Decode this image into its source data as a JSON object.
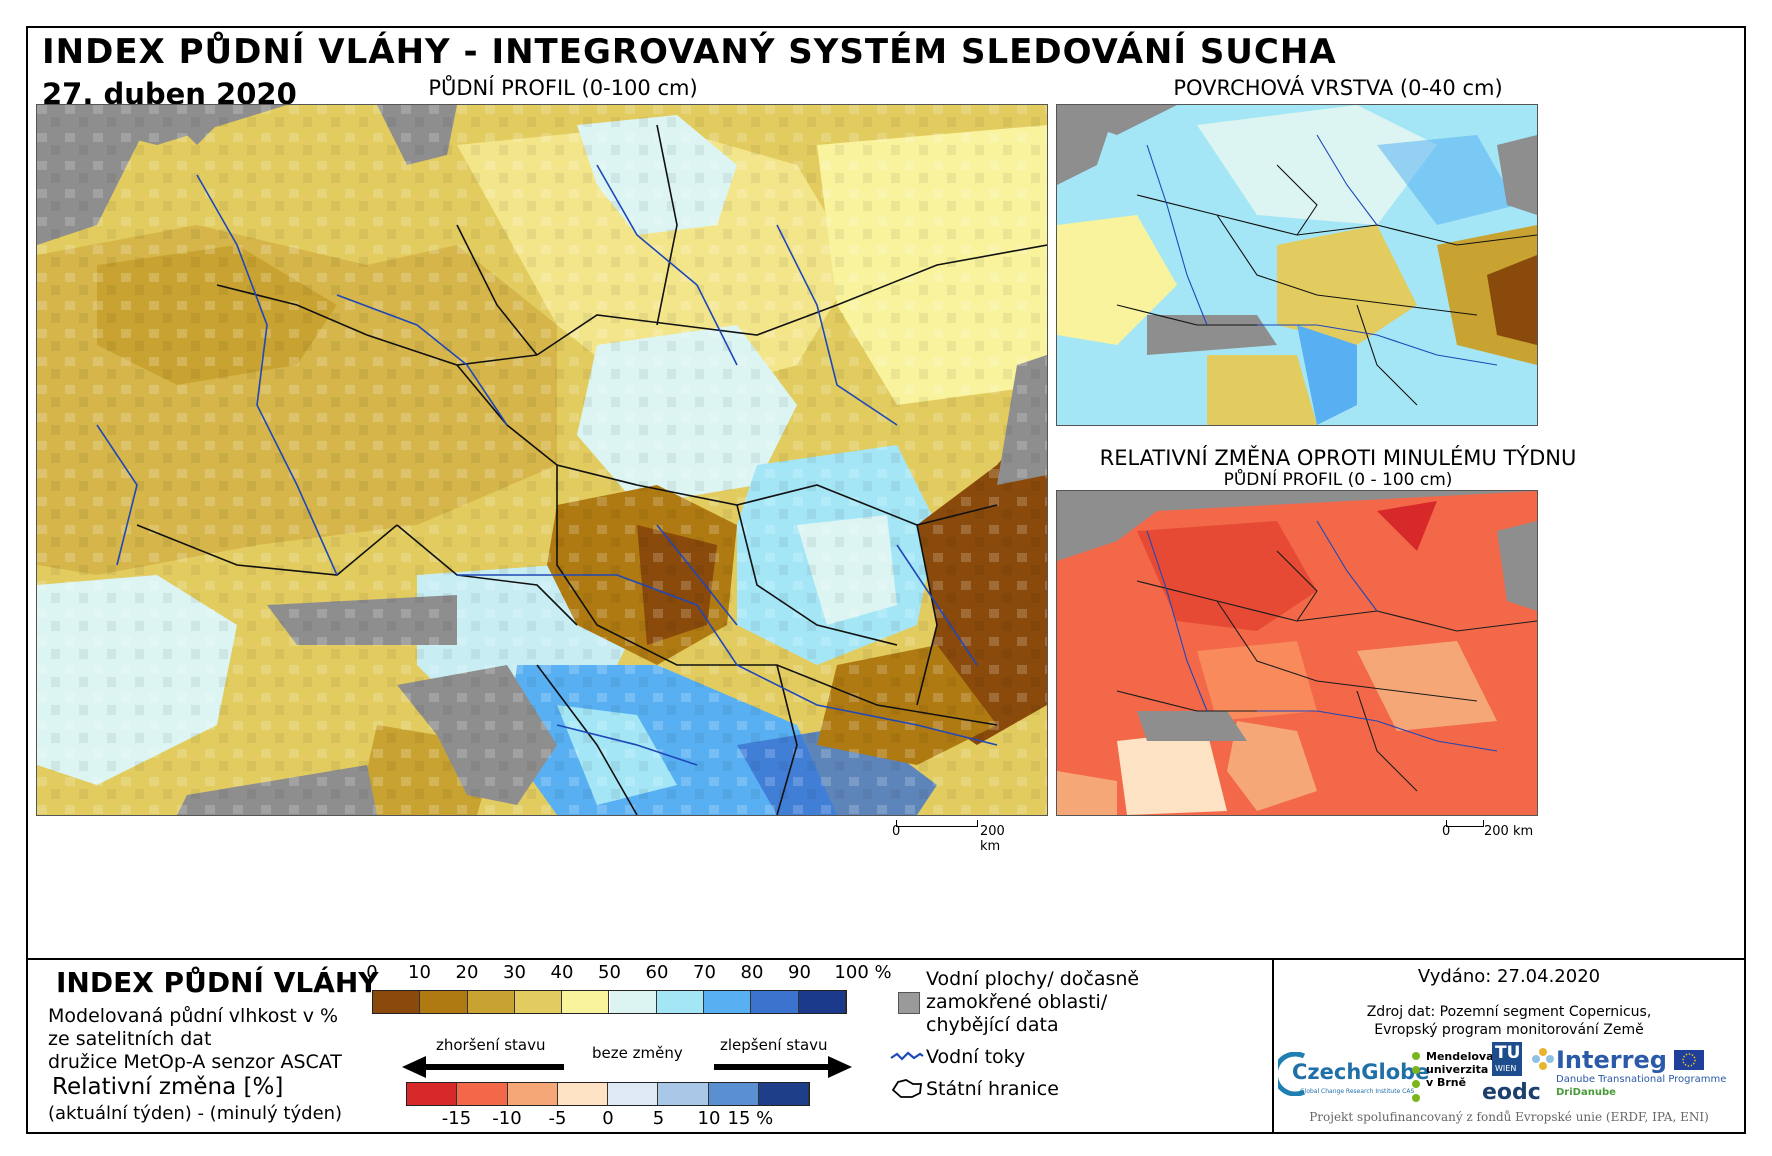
{
  "title": "INDEX PŮDNÍ VLÁHY - INTEGROVANÝ SYSTÉM SLEDOVÁNÍ SUCHA",
  "date": "27. duben 2020",
  "panels": {
    "main": {
      "title": "PŮDNÍ PROFIL (0-100 cm)"
    },
    "surface": {
      "title": "POVRCHOVÁ VRSTVA (0-40 cm)"
    },
    "change": {
      "title": "RELATIVNÍ ZMĚNA OPROTI MINULÉMU TÝDNU",
      "subtitle": "PŮDNÍ PROFIL (0 - 100 cm)"
    }
  },
  "scalebar": {
    "main": {
      "zero": "0",
      "end": "200 km"
    },
    "small": {
      "zero": "0",
      "end": "200 km"
    }
  },
  "legend": {
    "heading": "INDEX PŮDNÍ VLÁHY",
    "desc_lines": [
      "Modelovaná půdní vlhkost v %",
      "ze satelitních dat",
      "družice MetOp-A senzor ASCAT"
    ],
    "change_heading": "Relativní změna [%]",
    "change_desc": "(aktuální týden) - (minulý týden)",
    "index_ticks": [
      "0",
      "10",
      "20",
      "30",
      "40",
      "50",
      "60",
      "70",
      "80",
      "90",
      "100 %"
    ],
    "index_colors": [
      "#8a4a0b",
      "#b07a12",
      "#c9a331",
      "#e2cc5f",
      "#f8f39c",
      "#dcf5f2",
      "#a4e6f6",
      "#58b0f2",
      "#3c73cf",
      "#1c3a8c"
    ],
    "arrow_worse": "zhoršení stavu",
    "arrow_same": "beze změny",
    "arrow_better": "zlepšení stavu",
    "change_ticks": [
      "-15",
      "-10",
      "-5",
      "0",
      "5",
      "10",
      "15 %"
    ],
    "change_colors": [
      "#d7282a",
      "#f26848",
      "#f6a777",
      "#fde3c3",
      "#dfe9f4",
      "#a9c8e8",
      "#5a8fd1",
      "#1e3e8a"
    ],
    "symbols": {
      "water_lines": [
        "Vodní plochy/ dočasně",
        "zamokřené oblasti/",
        "chybějící data"
      ],
      "rivers": "Vodní toky",
      "borders": "Státní hranice"
    }
  },
  "info": {
    "issued": "Vydáno: 27.04.2020",
    "source_lines": [
      "Zdroj dat: Pozemní segment Copernicus,",
      "Evropský program monitorování Země"
    ],
    "logos": {
      "czechglobe": "CzechGlobe",
      "czechglobe_sub": "Global Change Research Institute CAS",
      "mendel_lines": [
        "Mendelova",
        "univerzita",
        "v Brně"
      ],
      "tu": "TU",
      "tu_sub": "WIEN",
      "eodc": "eodc",
      "interreg": "Interreg",
      "interreg_sub": "Danube Transnational Programme",
      "dridanube": "DriDanube"
    },
    "footer": "Projekt spolufinancovaný z fondů Evropské unie (ERDF, IPA, ENI)"
  }
}
